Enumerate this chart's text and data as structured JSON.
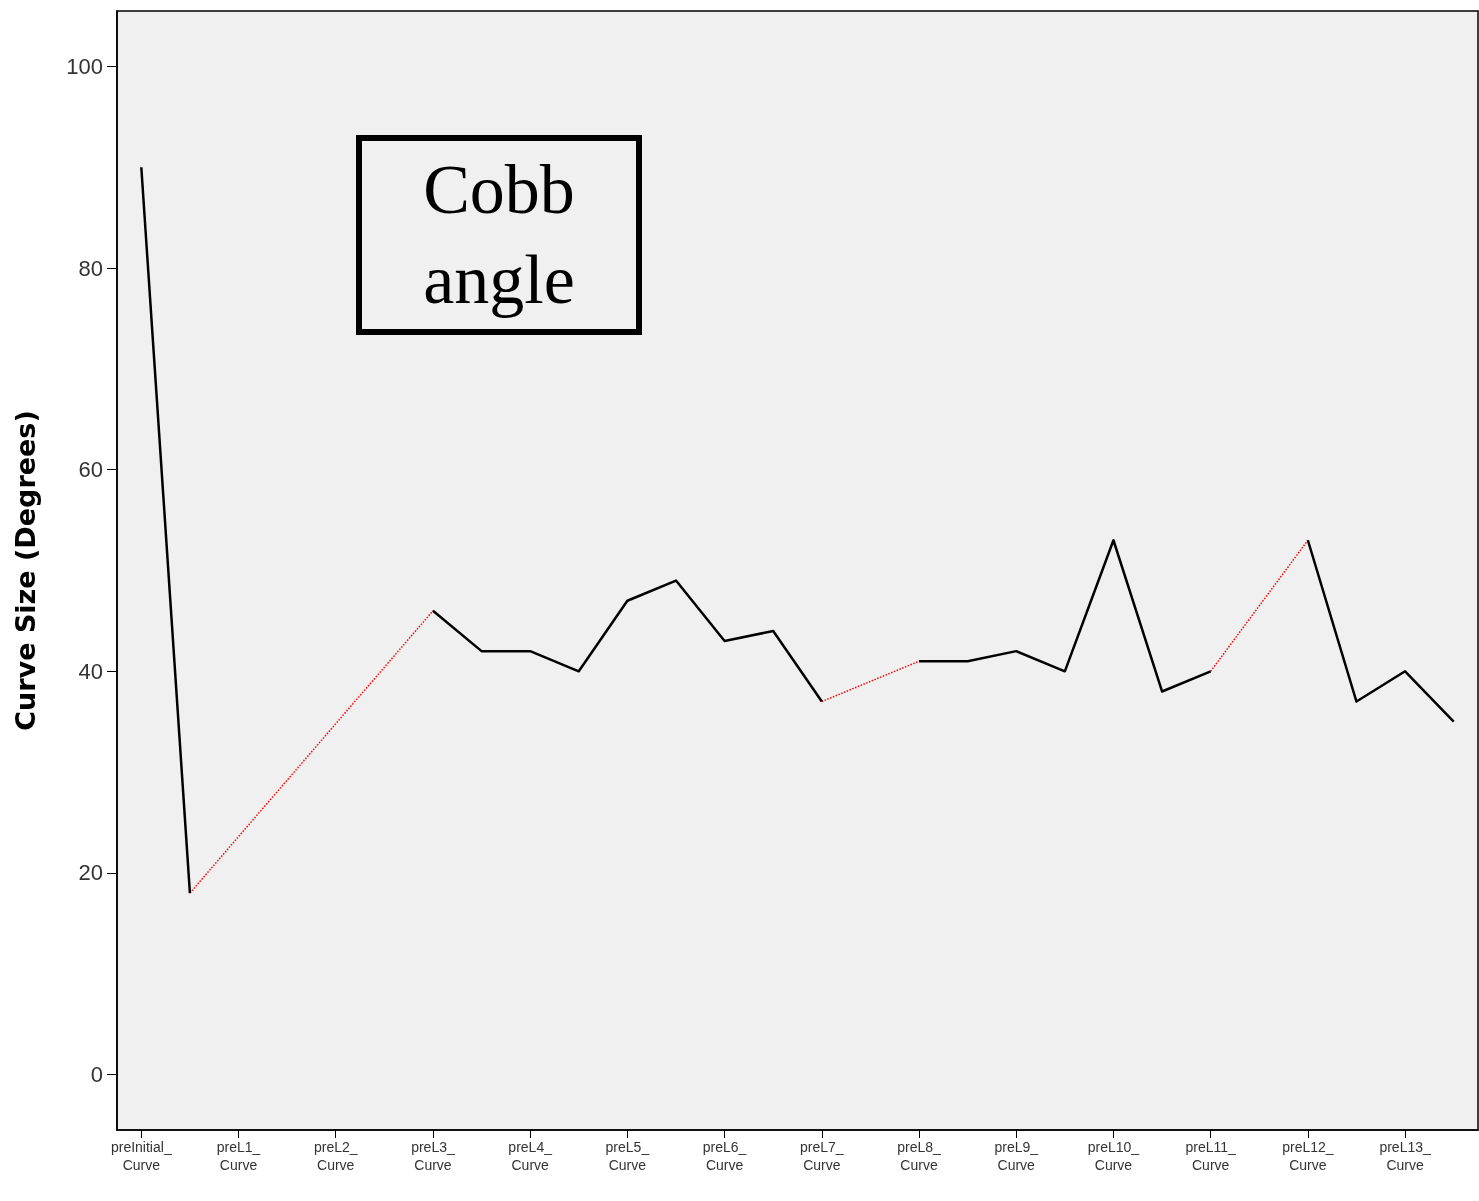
{
  "chart_data": {
    "type": "line",
    "ylabel": "Curve Size (Degrees)",
    "annotations": [
      "Cobb angle"
    ],
    "categories": [
      "preInitial_Curve",
      null,
      "preL1_Curve",
      null,
      "preL2_Curve",
      null,
      "preL3_Curve",
      null,
      "preL4_Curve",
      null,
      "preL5_Curve",
      null,
      "preL6_Curve",
      null,
      "preL7_Curve",
      null,
      "preL8_Curve",
      null,
      "preL9_Curve",
      null,
      "preL10_Curve",
      null,
      "preL11_Curve",
      null,
      "preL12_Curve",
      null,
      "preL13_Curve",
      null
    ],
    "series": [
      {
        "color": "#000000",
        "line_style": "solid",
        "values": [
          90,
          18,
          null,
          null,
          null,
          null,
          46,
          42,
          42,
          40,
          47,
          49,
          43,
          44,
          37,
          null,
          41,
          41,
          42,
          40,
          53,
          38,
          40,
          null,
          53,
          37,
          40,
          35
        ]
      },
      {
        "color": "#ff0000",
        "line_style": "dotted",
        "values": [
          null,
          18,
          null,
          null,
          null,
          null,
          46,
          null,
          null,
          null,
          null,
          null,
          null,
          null,
          null,
          null,
          null,
          null,
          null,
          null,
          null,
          null,
          null,
          null,
          null,
          null,
          null,
          null
        ]
      },
      {
        "color": "#ff0000",
        "line_style": "dotted",
        "values": [
          null,
          null,
          null,
          null,
          null,
          null,
          null,
          null,
          null,
          null,
          null,
          null,
          null,
          null,
          37,
          null,
          41,
          null,
          null,
          null,
          null,
          null,
          null,
          null,
          null,
          null,
          null,
          null
        ]
      },
      {
        "color": "#ff0000",
        "line_style": "dotted",
        "values": [
          null,
          null,
          null,
          null,
          null,
          null,
          null,
          null,
          null,
          null,
          null,
          null,
          null,
          null,
          null,
          null,
          null,
          null,
          null,
          null,
          null,
          null,
          40,
          null,
          53,
          null,
          null,
          null
        ]
      }
    ],
    "ylim": [
      -5.5,
      105.5
    ],
    "yticks": [
      0,
      20,
      40,
      60,
      80,
      100
    ],
    "grid": false,
    "marker": "none"
  }
}
